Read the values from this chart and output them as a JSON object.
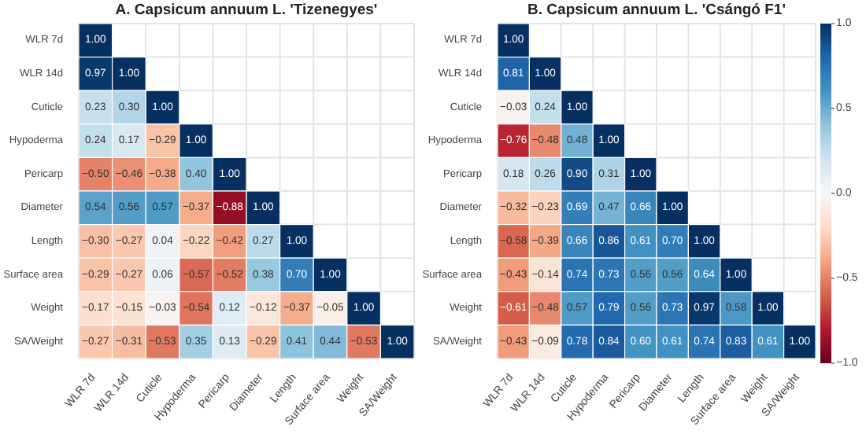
{
  "chart_data": [
    {
      "type": "heatmap",
      "title": "A. Capsicum annuum L. 'Tizenegyes'",
      "categories": [
        "WLR 7d",
        "WLR 14d",
        "Cuticle",
        "Hypoderma",
        "Pericarp",
        "Diameter",
        "Length",
        "Surface area",
        "Weight",
        "SA/Weight"
      ],
      "y_categories": [
        "WLR 7d",
        "WLR 14d",
        "Cuticle",
        "Hypoderma",
        "Pericarp",
        "Diameter",
        "Length",
        "Surface area",
        "Weight",
        "SA/Weight"
      ],
      "grid": true,
      "cells": [
        [
          1.0,
          null,
          null,
          null,
          null,
          null,
          null,
          null,
          null,
          null
        ],
        [
          0.97,
          1.0,
          null,
          null,
          null,
          null,
          null,
          null,
          null,
          null
        ],
        [
          0.23,
          0.3,
          1.0,
          null,
          null,
          null,
          null,
          null,
          null,
          null
        ],
        [
          0.24,
          0.17,
          -0.29,
          1.0,
          null,
          null,
          null,
          null,
          null,
          null
        ],
        [
          -0.5,
          -0.46,
          -0.38,
          0.4,
          1.0,
          null,
          null,
          null,
          null,
          null
        ],
        [
          0.54,
          0.56,
          0.57,
          -0.37,
          -0.88,
          1.0,
          null,
          null,
          null,
          null
        ],
        [
          -0.3,
          -0.27,
          0.04,
          -0.22,
          -0.42,
          0.27,
          1.0,
          null,
          null,
          null
        ],
        [
          -0.29,
          -0.27,
          0.06,
          -0.57,
          -0.52,
          0.38,
          0.7,
          1.0,
          null,
          null
        ],
        [
          -0.17,
          -0.15,
          -0.03,
          -0.54,
          0.12,
          -0.12,
          -0.37,
          -0.05,
          1.0,
          null
        ],
        [
          -0.27,
          -0.31,
          -0.53,
          0.35,
          0.13,
          -0.29,
          0.41,
          0.44,
          -0.53,
          1.0
        ]
      ],
      "cell_labels": [
        [
          "1.00",
          null,
          null,
          null,
          null,
          null,
          null,
          null,
          null,
          null
        ],
        [
          "0.97",
          "1.00",
          null,
          null,
          null,
          null,
          null,
          null,
          null,
          null
        ],
        [
          "0.23",
          "0.30",
          "1.00",
          null,
          null,
          null,
          null,
          null,
          null,
          null
        ],
        [
          "0.24",
          "0.17",
          "−0.29",
          "1.00",
          null,
          null,
          null,
          null,
          null,
          null
        ],
        [
          "−0.50",
          "−0.46",
          "−0.38",
          "0.40",
          "1.00",
          null,
          null,
          null,
          null,
          null
        ],
        [
          "0.54",
          "0.56",
          "0.57",
          "−0.37",
          "−0.88",
          "1.00",
          null,
          null,
          null,
          null
        ],
        [
          "−0.30",
          "−0.27",
          "0.04",
          "−0.22",
          "−0.42",
          "0.27",
          "1.00",
          null,
          null,
          null
        ],
        [
          "−0.29",
          "−0.27",
          "0.06",
          "−0.57",
          "−0.52",
          "0.38",
          "0.70",
          "1.00",
          null,
          null
        ],
        [
          "−0.17",
          "−0.15",
          "−0.03",
          "−0.54",
          "0.12",
          "−0.12",
          "−0.37",
          "−0.05",
          "1.00",
          null
        ],
        [
          "−0.27",
          "−0.31",
          "−0.53",
          "0.35",
          "0.13",
          "−0.29",
          "0.41",
          "0.44",
          "−0.53",
          "1.00"
        ]
      ]
    },
    {
      "type": "heatmap",
      "title": "B. Capsicum annuum L. 'Csángó F1'",
      "categories": [
        "WLR 7d",
        "WLR 14d",
        "Cuticle",
        "Hypoderma",
        "Pericarp",
        "Diameter",
        "Length",
        "Surface area",
        "Weight",
        "SA/Weight"
      ],
      "y_categories": [
        "WLR 7d",
        "WLR 14d",
        "Cuticle",
        "Hypoderma",
        "Pericarp",
        "Diameter",
        "Length",
        "Surface area",
        "Weight",
        "SA/Weight"
      ],
      "clim": [
        -1,
        1
      ],
      "cticks": [
        {
          "value": -1,
          "label": "−1.0"
        },
        {
          "value": -0.5,
          "label": "−0.5"
        },
        {
          "value": 0,
          "label": "0.0"
        },
        {
          "value": 0.5,
          "label": "0.5"
        },
        {
          "value": 1,
          "label": "1.0"
        }
      ],
      "grid": true,
      "cells": [
        [
          1.0,
          null,
          null,
          null,
          null,
          null,
          null,
          null,
          null,
          null
        ],
        [
          0.81,
          1.0,
          null,
          null,
          null,
          null,
          null,
          null,
          null,
          null
        ],
        [
          -0.03,
          0.24,
          1.0,
          null,
          null,
          null,
          null,
          null,
          null,
          null
        ],
        [
          -0.76,
          -0.48,
          0.48,
          1.0,
          null,
          null,
          null,
          null,
          null,
          null
        ],
        [
          0.18,
          0.26,
          0.9,
          0.31,
          1.0,
          null,
          null,
          null,
          null,
          null
        ],
        [
          -0.32,
          -0.23,
          0.69,
          0.47,
          0.66,
          1.0,
          null,
          null,
          null,
          null
        ],
        [
          -0.58,
          -0.39,
          0.66,
          0.86,
          0.61,
          0.7,
          1.0,
          null,
          null,
          null
        ],
        [
          -0.43,
          -0.14,
          0.74,
          0.73,
          0.56,
          0.56,
          0.64,
          1.0,
          null,
          null
        ],
        [
          -0.61,
          -0.48,
          0.57,
          0.79,
          0.56,
          0.73,
          0.97,
          0.58,
          1.0,
          null
        ],
        [
          -0.43,
          -0.09,
          0.78,
          0.84,
          0.6,
          0.61,
          0.74,
          0.83,
          0.61,
          1.0
        ]
      ],
      "cell_labels": [
        [
          "1.00",
          null,
          null,
          null,
          null,
          null,
          null,
          null,
          null,
          null
        ],
        [
          "0.81",
          "1.00",
          null,
          null,
          null,
          null,
          null,
          null,
          null,
          null
        ],
        [
          "−0.03",
          "0.24",
          "1.00",
          null,
          null,
          null,
          null,
          null,
          null,
          null
        ],
        [
          "−0.76",
          "−0.48",
          "0.48",
          "1.00",
          null,
          null,
          null,
          null,
          null,
          null
        ],
        [
          "0.18",
          "0.26",
          "0.90",
          "0.31",
          "1.00",
          null,
          null,
          null,
          null,
          null
        ],
        [
          "−0.32",
          "−0.23",
          "0.69",
          "0.47",
          "0.66",
          "1.00",
          null,
          null,
          null,
          null
        ],
        [
          "−0.58",
          "−0.39",
          "0.66",
          "0.86",
          "0.61",
          "0.70",
          "1.00",
          null,
          null,
          null
        ],
        [
          "−0.43",
          "−0.14",
          "0.74",
          "0.73",
          "0.56",
          "0.56",
          "0.64",
          "1.00",
          null,
          null
        ],
        [
          "−0.61",
          "−0.48",
          "0.57",
          "0.79",
          "0.56",
          "0.73",
          "0.97",
          "0.58",
          "1.00",
          null
        ],
        [
          "−0.43",
          "−0.09",
          "0.78",
          "0.84",
          "0.60",
          "0.61",
          "0.74",
          "0.83",
          "0.61",
          "1.00"
        ]
      ]
    }
  ]
}
